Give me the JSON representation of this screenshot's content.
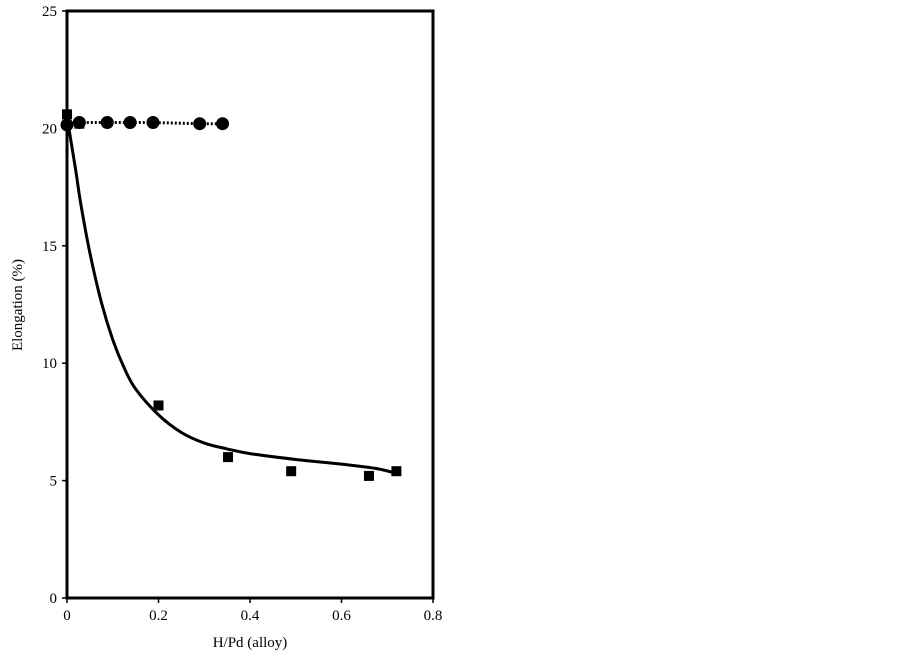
{
  "chart_data": {
    "type": "scatter",
    "title": "",
    "xlabel": "H/Pd (alloy)",
    "ylabel": "Elongation (%)",
    "xlim": [
      0,
      0.8
    ],
    "ylim": [
      0,
      25
    ],
    "xticks": [
      0,
      0.2,
      0.4,
      0.6,
      0.8
    ],
    "xtick_labels": [
      "0",
      "0.2",
      "0.4",
      "0.6",
      "0.8"
    ],
    "yticks": [
      0,
      5,
      10,
      15,
      20,
      25
    ],
    "ytick_labels": [
      "0",
      "5",
      "10",
      "15",
      "20",
      "25"
    ],
    "grid": false,
    "legend": "none",
    "series": [
      {
        "marker": "circle",
        "line": "dotted",
        "color": "#000000",
        "x": [
          0.0,
          0.027,
          0.088,
          0.138,
          0.188,
          0.29,
          0.34
        ],
        "y": [
          20.15,
          20.25,
          20.25,
          20.25,
          20.25,
          20.2,
          20.2
        ]
      },
      {
        "marker": "square",
        "line": "solid-curve-fit",
        "color": "#000000",
        "x": [
          0.0,
          0.027,
          0.2,
          0.352,
          0.49,
          0.66,
          0.72
        ],
        "y": [
          20.6,
          20.2,
          8.2,
          6.0,
          5.4,
          5.2,
          5.4
        ],
        "fit_x": [
          0.0,
          0.01,
          0.02,
          0.03,
          0.05,
          0.075,
          0.1,
          0.125,
          0.15,
          0.2,
          0.25,
          0.3,
          0.35,
          0.4,
          0.5,
          0.6,
          0.68,
          0.72
        ],
        "fit_y": [
          20.5,
          19.3,
          18.1,
          16.8,
          14.7,
          12.6,
          11.0,
          9.8,
          8.9,
          7.8,
          7.05,
          6.6,
          6.35,
          6.15,
          5.9,
          5.7,
          5.5,
          5.3
        ]
      }
    ]
  }
}
